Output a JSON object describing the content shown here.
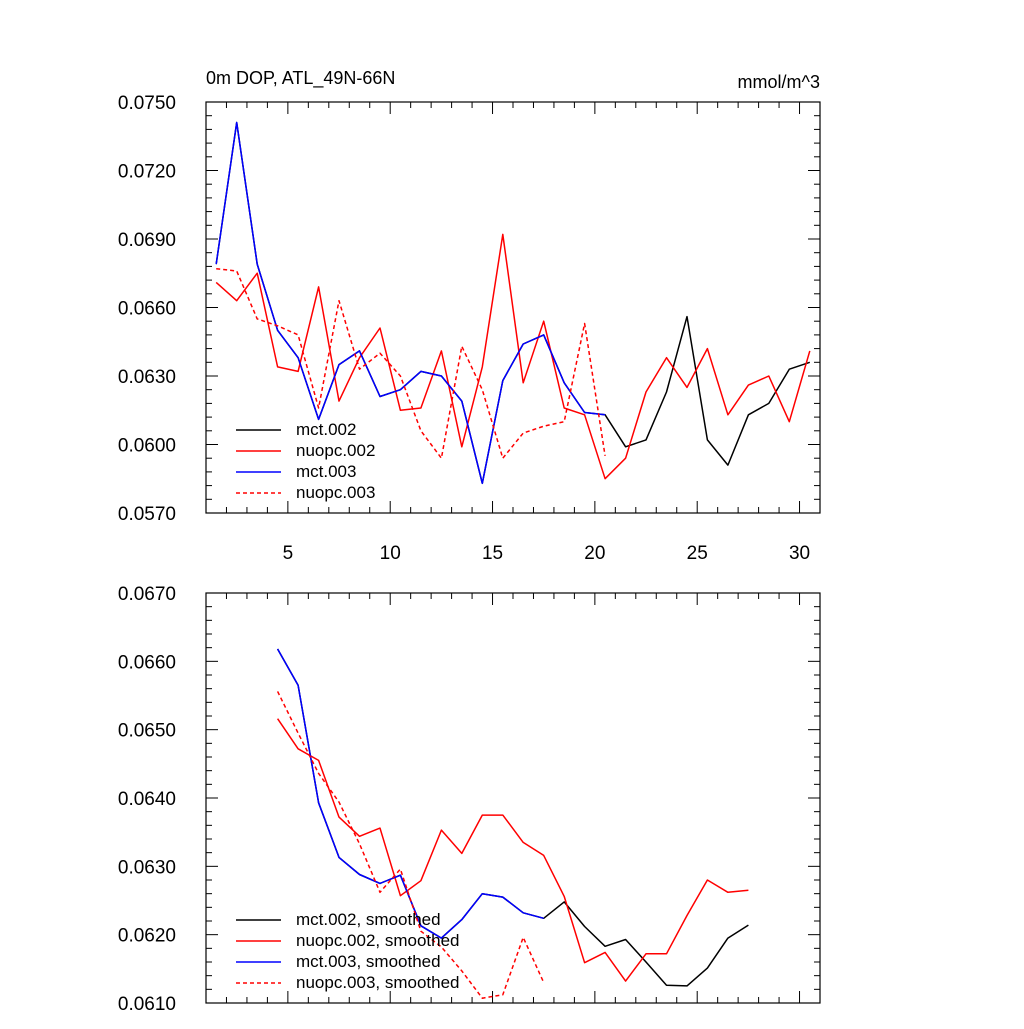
{
  "chart_data": [
    {
      "type": "line",
      "title": "0m DOP, ATL_49N-66N",
      "units": "mmol/m^3",
      "xlabel": "",
      "ylabel": "",
      "xlim": [
        1,
        31
      ],
      "ylim": [
        0.057,
        0.075
      ],
      "xticks": [
        5,
        10,
        15,
        20,
        25,
        30
      ],
      "xtick_labels": [
        "5",
        "10",
        "15",
        "20",
        "25",
        "30"
      ],
      "yticks": [
        0.057,
        0.06,
        0.063,
        0.066,
        0.069,
        0.072,
        0.075
      ],
      "ytick_labels": [
        "0.0570",
        "0.0600",
        "0.0630",
        "0.0660",
        "0.0690",
        "0.0720",
        "0.0750"
      ],
      "legend_position": "bottom-left",
      "series": [
        {
          "name": "mct.002",
          "color": "#000000",
          "dash": "solid",
          "x": [
            1.5,
            2.5,
            3.5,
            4.5,
            5.5,
            6.5,
            7.5,
            8.5,
            9.5,
            10.5,
            11.5,
            12.5,
            13.5,
            14.5,
            15.5,
            16.5,
            17.5,
            18.5,
            19.5,
            20.5,
            21.5,
            22.5,
            23.5,
            24.5,
            25.5,
            26.5,
            27.5,
            28.5,
            29.5,
            30.5
          ],
          "values": [
            0.0679,
            0.0741,
            0.0679,
            0.065,
            0.0638,
            0.0611,
            0.0635,
            0.0641,
            0.0621,
            0.0624,
            0.0632,
            0.063,
            0.0619,
            0.0583,
            0.0628,
            0.0644,
            0.0648,
            0.0627,
            0.0614,
            0.0613,
            0.0599,
            0.0602,
            0.0623,
            0.0656,
            0.0602,
            0.0591,
            0.0613,
            0.0618,
            0.0633,
            0.0636
          ]
        },
        {
          "name": "nuopc.002",
          "color": "#ff0000",
          "dash": "solid",
          "x": [
            1.5,
            2.5,
            3.5,
            4.5,
            5.5,
            6.5,
            7.5,
            8.5,
            9.5,
            10.5,
            11.5,
            12.5,
            13.5,
            14.5,
            15.5,
            16.5,
            17.5,
            18.5,
            19.5,
            20.5,
            21.5,
            22.5,
            23.5,
            24.5,
            25.5,
            26.5,
            27.5,
            28.5,
            29.5,
            30.5
          ],
          "values": [
            0.0671,
            0.0663,
            0.0675,
            0.0634,
            0.0632,
            0.0669,
            0.0619,
            0.0638,
            0.0651,
            0.0615,
            0.0616,
            0.0641,
            0.0599,
            0.0634,
            0.0692,
            0.0627,
            0.0654,
            0.0616,
            0.0613,
            0.0585,
            0.0594,
            0.0623,
            0.0638,
            0.0625,
            0.0642,
            0.0613,
            0.0626,
            0.063,
            0.061,
            0.0641
          ]
        },
        {
          "name": "mct.003",
          "color": "#0000ff",
          "dash": "solid",
          "x": [
            1.5,
            2.5,
            3.5,
            4.5,
            5.5,
            6.5,
            7.5,
            8.5,
            9.5,
            10.5,
            11.5,
            12.5,
            13.5,
            14.5,
            15.5,
            16.5,
            17.5,
            18.5,
            19.5,
            20.5
          ],
          "values": [
            0.0679,
            0.0741,
            0.0679,
            0.065,
            0.0638,
            0.0611,
            0.0635,
            0.0641,
            0.0621,
            0.0624,
            0.0632,
            0.063,
            0.0619,
            0.0583,
            0.0628,
            0.0644,
            0.0648,
            0.0627,
            0.0614,
            0.0613
          ]
        },
        {
          "name": "nuopc.003",
          "color": "#ff0000",
          "dash": "dashed",
          "x": [
            1.5,
            2.5,
            3.5,
            4.5,
            5.5,
            6.5,
            7.5,
            8.5,
            9.5,
            10.5,
            11.5,
            12.5,
            13.5,
            14.5,
            15.5,
            16.5,
            17.5,
            18.5,
            19.5,
            20.5
          ],
          "values": [
            0.0677,
            0.0676,
            0.0655,
            0.0652,
            0.0648,
            0.0616,
            0.0663,
            0.0633,
            0.064,
            0.063,
            0.0606,
            0.0594,
            0.0643,
            0.0624,
            0.0594,
            0.0605,
            0.0608,
            0.061,
            0.0653,
            0.0595
          ]
        }
      ]
    },
    {
      "type": "line",
      "title": "",
      "xlabel": "",
      "ylabel": "",
      "xlim": [
        1,
        31
      ],
      "ylim": [
        0.061,
        0.067
      ],
      "xticks": [
        5,
        10,
        15,
        20,
        25,
        30
      ],
      "xtick_labels": [],
      "yticks": [
        0.061,
        0.062,
        0.063,
        0.064,
        0.065,
        0.066,
        0.067
      ],
      "ytick_labels": [
        "0.0610",
        "0.0620",
        "0.0630",
        "0.0640",
        "0.0650",
        "0.0660",
        "0.0670"
      ],
      "legend_position": "bottom-left",
      "series": [
        {
          "name": "mct.002, smoothed",
          "color": "#000000",
          "dash": "solid",
          "x": [
            4.5,
            5.5,
            6.5,
            7.5,
            8.5,
            9.5,
            10.5,
            11.5,
            12.5,
            13.5,
            14.5,
            15.5,
            16.5,
            17.5,
            18.5,
            19.5,
            20.5,
            21.5,
            22.5,
            23.5,
            24.5,
            25.5,
            26.5,
            27.5
          ],
          "values": [
            0.06618,
            0.06565,
            0.06393,
            0.06313,
            0.06288,
            0.06275,
            0.06287,
            0.06213,
            0.06195,
            0.06222,
            0.0626,
            0.06255,
            0.06232,
            0.06224,
            0.06248,
            0.06212,
            0.06183,
            0.06193,
            0.0616,
            0.06126,
            0.06125,
            0.06151,
            0.06195,
            0.06214
          ]
        },
        {
          "name": "nuopc.002, smoothed",
          "color": "#ff0000",
          "dash": "solid",
          "x": [
            4.5,
            5.5,
            6.5,
            7.5,
            8.5,
            9.5,
            10.5,
            11.5,
            12.5,
            13.5,
            14.5,
            15.5,
            16.5,
            17.5,
            18.5,
            19.5,
            20.5,
            21.5,
            22.5,
            23.5,
            24.5,
            25.5,
            26.5,
            27.5
          ],
          "values": [
            0.06516,
            0.06472,
            0.06455,
            0.06372,
            0.06344,
            0.06356,
            0.06257,
            0.06279,
            0.06353,
            0.06319,
            0.06375,
            0.06375,
            0.06335,
            0.06316,
            0.06256,
            0.06159,
            0.06174,
            0.06132,
            0.06172,
            0.06172,
            0.06228,
            0.0628,
            0.06262,
            0.06265
          ]
        },
        {
          "name": "mct.003, smoothed",
          "color": "#0000ff",
          "dash": "solid",
          "x": [
            4.5,
            5.5,
            6.5,
            7.5,
            8.5,
            9.5,
            10.5,
            11.5,
            12.5,
            13.5,
            14.5,
            15.5,
            16.5,
            17.5
          ],
          "values": [
            0.06618,
            0.06565,
            0.06393,
            0.06313,
            0.06288,
            0.06275,
            0.06287,
            0.06213,
            0.06195,
            0.06222,
            0.0626,
            0.06255,
            0.06232,
            0.06224
          ]
        },
        {
          "name": "nuopc.003, smoothed",
          "color": "#ff0000",
          "dash": "dashed",
          "x": [
            4.5,
            5.5,
            6.5,
            7.5,
            8.5,
            9.5,
            10.5,
            11.5,
            12.5,
            13.5,
            14.5,
            15.5,
            16.5,
            17.5
          ],
          "values": [
            0.06556,
            0.06495,
            0.06436,
            0.06394,
            0.06333,
            0.06262,
            0.06296,
            0.06205,
            0.06182,
            0.06147,
            0.06107,
            0.06112,
            0.06196,
            0.0613
          ]
        }
      ]
    }
  ]
}
